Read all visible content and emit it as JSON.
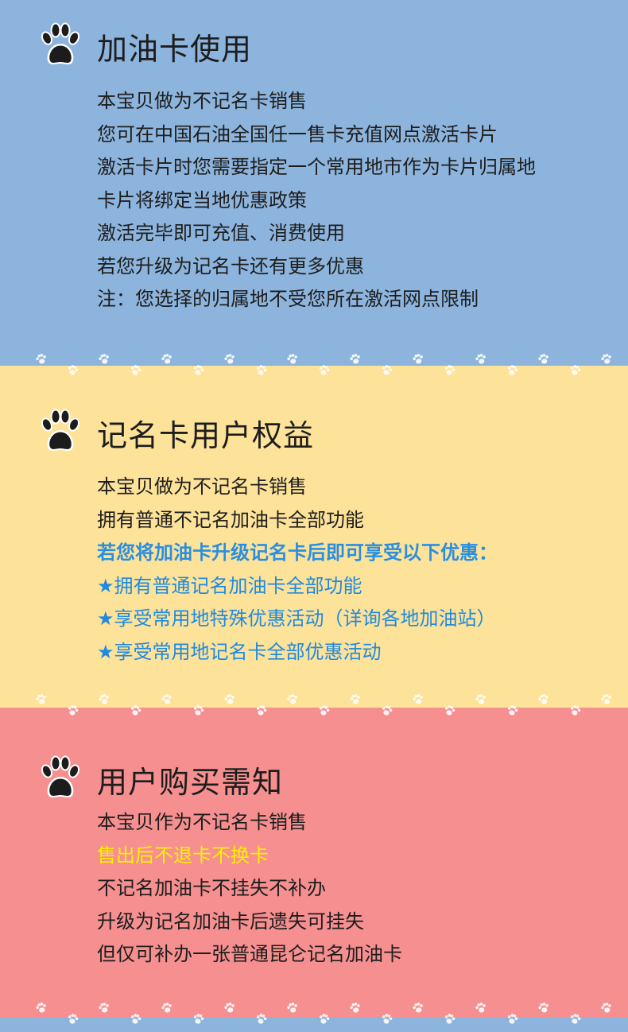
{
  "sections": [
    {
      "title": "加油卡使用",
      "icon": "paw-print-icon",
      "lines": [
        {
          "text": "本宝贝做为不记名卡销售",
          "style": "normal"
        },
        {
          "text": "您可在中国石油全国任一售卡充值网点激活卡片",
          "style": "normal"
        },
        {
          "text": "激活卡片时您需要指定一个常用地市作为卡片归属地",
          "style": "normal"
        },
        {
          "text": "卡片将绑定当地优惠政策",
          "style": "normal"
        },
        {
          "text": "激活完毕即可充值、消费使用",
          "style": "normal"
        },
        {
          "text": "若您升级为记名卡还有更多优惠",
          "style": "normal"
        },
        {
          "text": "注：您选择的归属地不受您所在激活网点限制",
          "style": "normal"
        }
      ]
    },
    {
      "title": "记名卡用户权益",
      "icon": "paw-print-icon",
      "lines": [
        {
          "text": "本宝贝做为不记名卡销售",
          "style": "normal"
        },
        {
          "text": "拥有普通不记名加油卡全部功能",
          "style": "normal"
        },
        {
          "text": "若您将加油卡升级记名卡后即可享受以下优惠：",
          "style": "hl-blue"
        },
        {
          "text": "★拥有普通记名加油卡全部功能",
          "style": "star"
        },
        {
          "text": "★享受常用地特殊优惠活动（详询各地加油站）",
          "style": "star"
        },
        {
          "text": "★享受常用地记名卡全部优惠活动",
          "style": "star"
        }
      ]
    },
    {
      "title": "用户购买需知",
      "icon": "paw-print-icon",
      "lines": [
        {
          "text": "本宝贝作为不记名卡销售",
          "style": "normal"
        },
        {
          "text": "售出后不退卡不换卡",
          "style": "hl-yellow"
        },
        {
          "text": "不记名加油卡不挂失不补办",
          "style": "normal"
        },
        {
          "text": "升级为记名加油卡后遗失可挂失",
          "style": "normal"
        },
        {
          "text": "但仅可补办一张普通昆仑记名加油卡",
          "style": "normal"
        }
      ]
    }
  ],
  "colors": {
    "section_1_bg": "#8db4dc",
    "section_2_bg": "#fde299",
    "section_3_bg": "#f58f90",
    "highlight_blue": "#2a8fe0",
    "highlight_yellow": "#fff200",
    "paw_pattern": "#ffffff"
  }
}
